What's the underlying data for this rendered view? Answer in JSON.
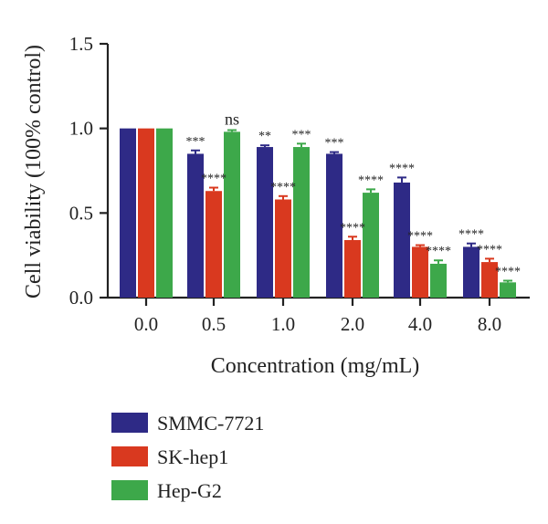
{
  "chart_data": {
    "type": "bar",
    "xlabel": "Concentration (mg/mL)",
    "ylabel": "Cell viability (100% control)",
    "ylim": [
      0,
      1.5
    ],
    "yticks": [
      "0.0",
      "0.5",
      "1.0",
      "1.5"
    ],
    "categories": [
      "0.0",
      "0.5",
      "1.0",
      "2.0",
      "4.0",
      "8.0"
    ],
    "series": [
      {
        "name": "SMMC-7721",
        "color": "#2e2a86",
        "values": [
          1.0,
          0.85,
          0.89,
          0.85,
          0.68,
          0.3
        ],
        "errors": [
          0.0,
          0.02,
          0.01,
          0.01,
          0.03,
          0.02
        ],
        "significance": [
          "",
          "***",
          "**",
          "***",
          "****",
          "****"
        ]
      },
      {
        "name": "SK-hep1",
        "color": "#d9391f",
        "values": [
          1.0,
          0.63,
          0.58,
          0.34,
          0.3,
          0.21
        ],
        "errors": [
          0.0,
          0.02,
          0.02,
          0.02,
          0.01,
          0.02
        ],
        "significance": [
          "",
          "****",
          "****",
          "****",
          "****",
          "****"
        ]
      },
      {
        "name": "Hep-G2",
        "color": "#3da84a",
        "values": [
          1.0,
          0.98,
          0.89,
          0.62,
          0.2,
          0.09
        ],
        "errors": [
          0.0,
          0.01,
          0.02,
          0.02,
          0.02,
          0.01
        ],
        "significance": [
          "",
          "ns",
          "***",
          "****",
          "****",
          "****"
        ]
      }
    ],
    "legend_position": "bottom-left",
    "grid": false
  }
}
